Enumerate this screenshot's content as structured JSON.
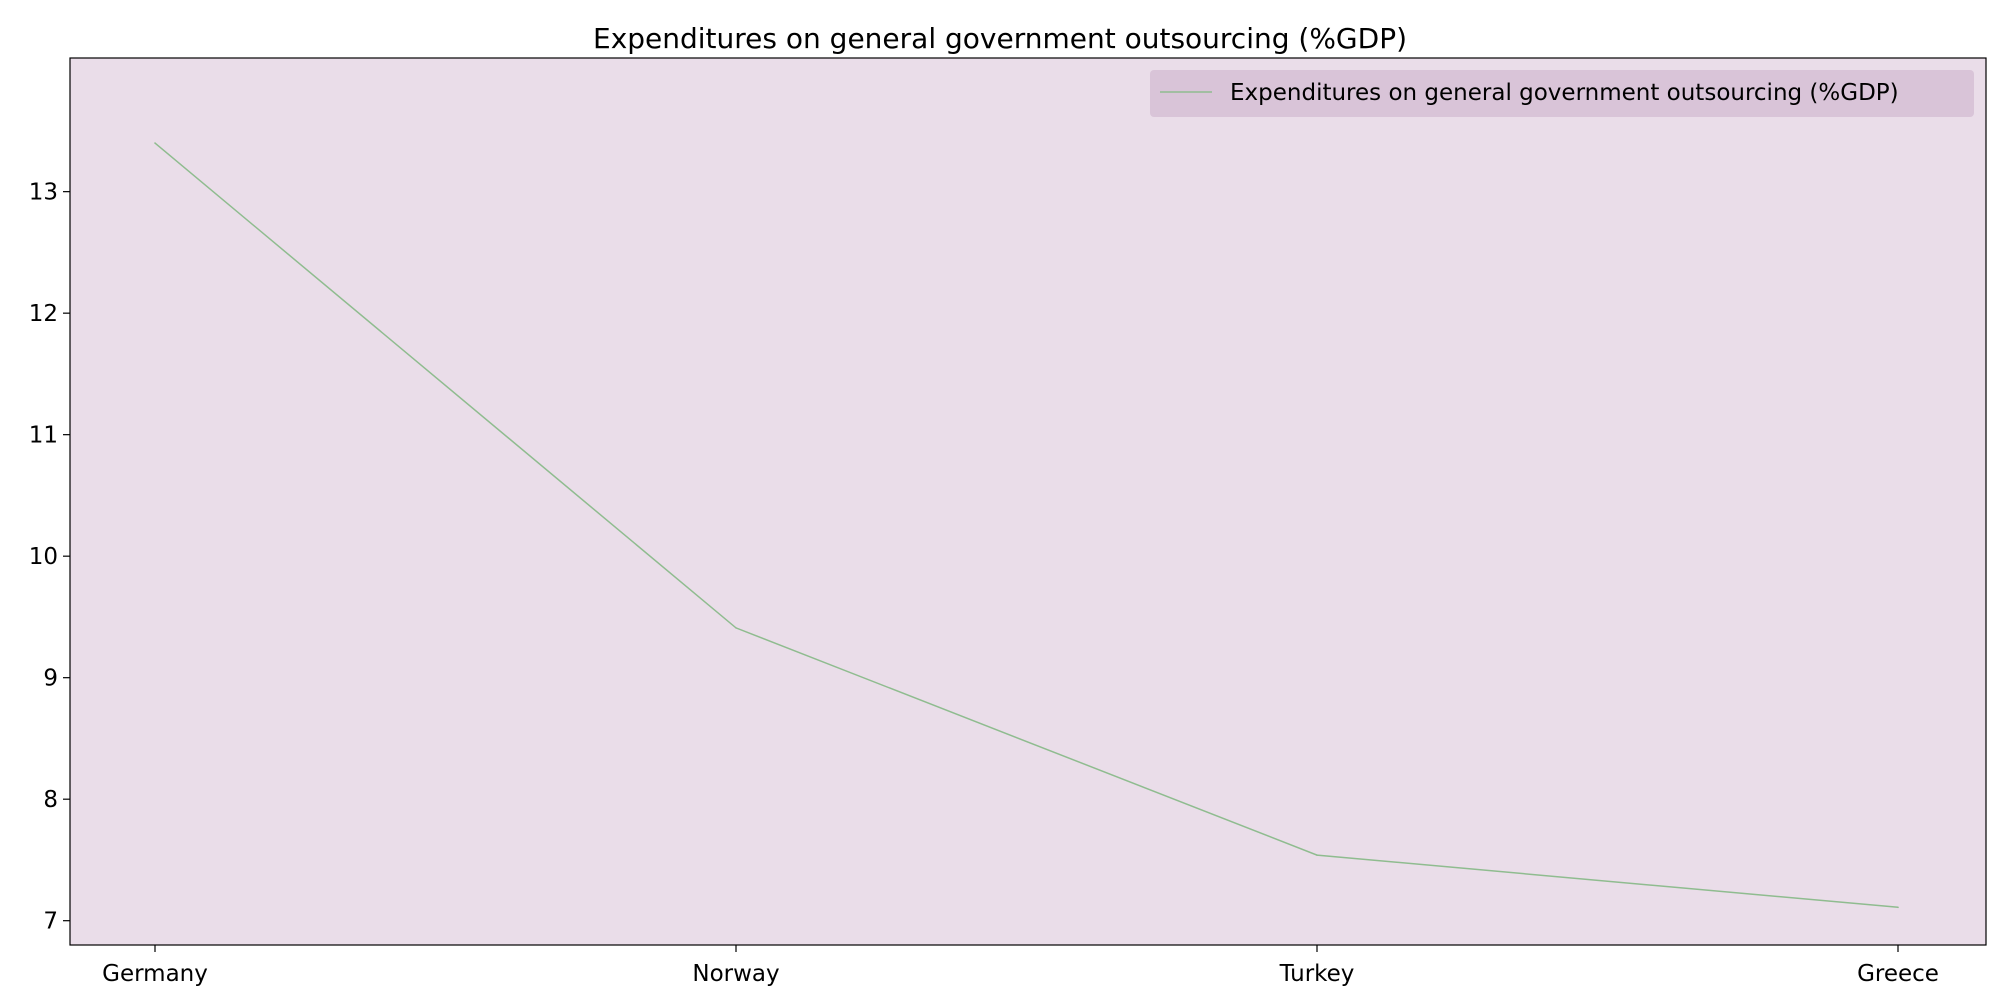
{
  "chart_data": {
    "type": "line",
    "title": "Expenditures on general government outsourcing (%GDP)",
    "xlabel": "",
    "ylabel": "",
    "categories": [
      "Germany",
      "Norway",
      "Turkey",
      "Greece"
    ],
    "series": [
      {
        "name": "Expenditures on general government outsourcing (%GDP)",
        "values": [
          13.4,
          9.41,
          7.54,
          7.11
        ],
        "color": "#8fbc8f"
      }
    ],
    "yticks": [
      7,
      8,
      9,
      10,
      11,
      12,
      13
    ],
    "ylim": [
      6.8,
      14.1
    ],
    "grid": false,
    "legend": "top-right",
    "plot_background": "#eadde9",
    "legend_background": "#d9c4d8"
  }
}
